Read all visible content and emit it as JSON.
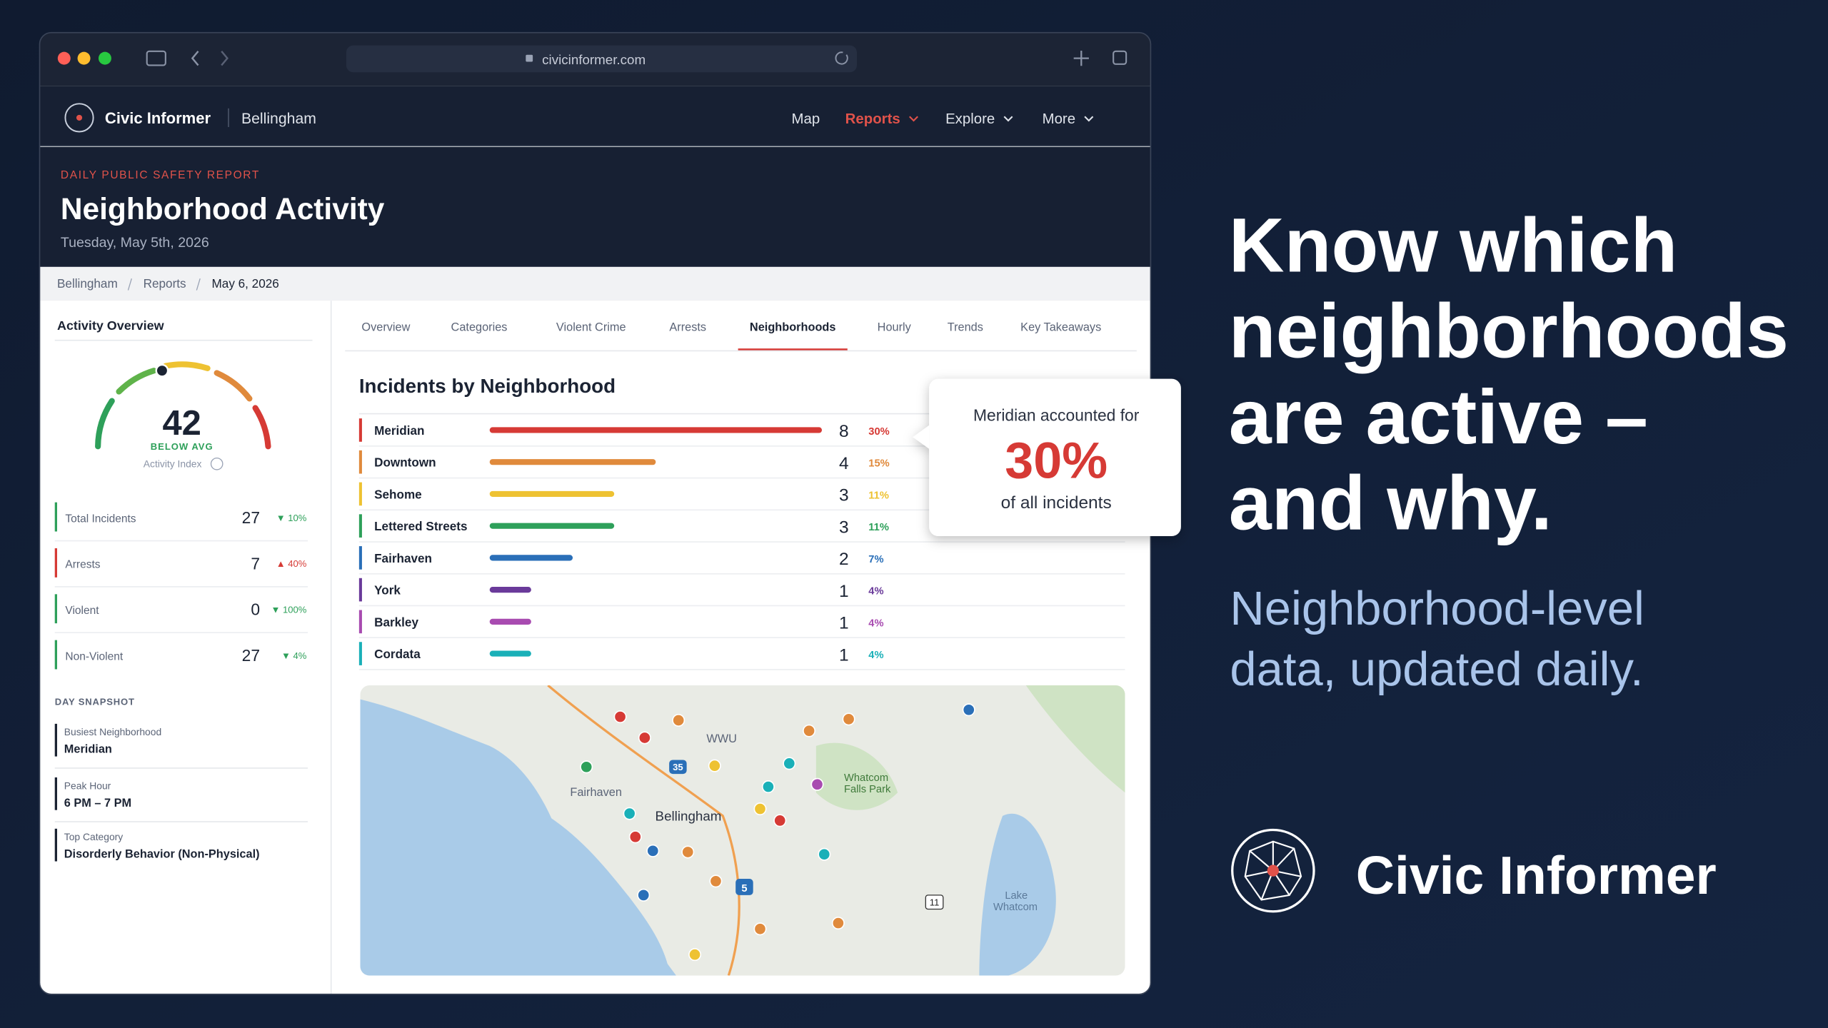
{
  "browser": {
    "url": "civicinformer.com"
  },
  "nav": {
    "brand": "Civic Informer",
    "city": "Bellingham",
    "links": [
      "Map",
      "Reports",
      "Explore",
      "More"
    ]
  },
  "header": {
    "eyebrow": "DAILY PUBLIC SAFETY REPORT",
    "title": "Neighborhood Activity",
    "date": "Tuesday, May 5th, 2026"
  },
  "breadcrumb": [
    "Bellingham",
    "Reports",
    "May 6, 2026"
  ],
  "sidebar": {
    "title": "Activity Overview",
    "gauge": {
      "value": 42,
      "status": "BELOW AVG",
      "label": "Activity Index"
    },
    "stats": [
      {
        "label": "Total Incidents",
        "value": 27,
        "change": "▼ 10%"
      },
      {
        "label": "Arrests",
        "value": 7,
        "change": "▲ 40%"
      },
      {
        "label": "Violent",
        "value": 0,
        "change": "▼ 100%"
      },
      {
        "label": "Non-Violent",
        "value": 27,
        "change": "▼ 4%"
      }
    ],
    "snapshot_title": "DAY SNAPSHOT",
    "snapshot": [
      {
        "label": "Busiest Neighborhood",
        "value": "Meridian"
      },
      {
        "label": "Peak Hour",
        "value": "6 PM – 7 PM"
      },
      {
        "label": "Top Category",
        "value": "Disorderly Behavior (Non-Physical)"
      }
    ]
  },
  "tabs": [
    "Overview",
    "Categories",
    "Violent Crime",
    "Arrests",
    "Neighborhoods",
    "Hourly",
    "Trends",
    "Key Takeaways"
  ],
  "neighborhoods": {
    "title": "Incidents by Neighborhood",
    "xlim": [
      0,
      8
    ],
    "rows": [
      {
        "name": "Meridian",
        "count": 8,
        "share": "30%",
        "color": "#d63a35"
      },
      {
        "name": "Downtown",
        "count": 4,
        "share": "15%",
        "color": "#e08a3c"
      },
      {
        "name": "Sehome",
        "count": 3,
        "share": "11%",
        "color": "#eec232"
      },
      {
        "name": "Lettered Streets",
        "count": 3,
        "share": "11%",
        "color": "#2ea05a"
      },
      {
        "name": "Fairhaven",
        "count": 2,
        "share": "7%",
        "color": "#2a6fb8"
      },
      {
        "name": "York",
        "count": 1,
        "share": "4%",
        "color": "#6a3a9a"
      },
      {
        "name": "Barkley",
        "count": 1,
        "share": "4%",
        "color": "#a84bb0"
      },
      {
        "name": "Cordata",
        "count": 1,
        "share": "4%",
        "color": "#1ab0b8"
      }
    ]
  },
  "callout": {
    "lead": "Meridian accounted for",
    "value": "30%",
    "tail": "of all incidents"
  },
  "map": {
    "labels": [
      "WWU",
      "Fairhaven",
      "Bellingham",
      "Whatcom",
      "Falls Park",
      "Lake",
      "Whatcom"
    ],
    "shields": [
      "35",
      "5",
      "11"
    ]
  },
  "promo": {
    "headline": [
      "Know which",
      "neighborhoods",
      "are active –",
      "and why."
    ],
    "subhead": [
      "Neighborhood-level",
      "data, updated daily."
    ],
    "brand": "Civic Informer"
  }
}
